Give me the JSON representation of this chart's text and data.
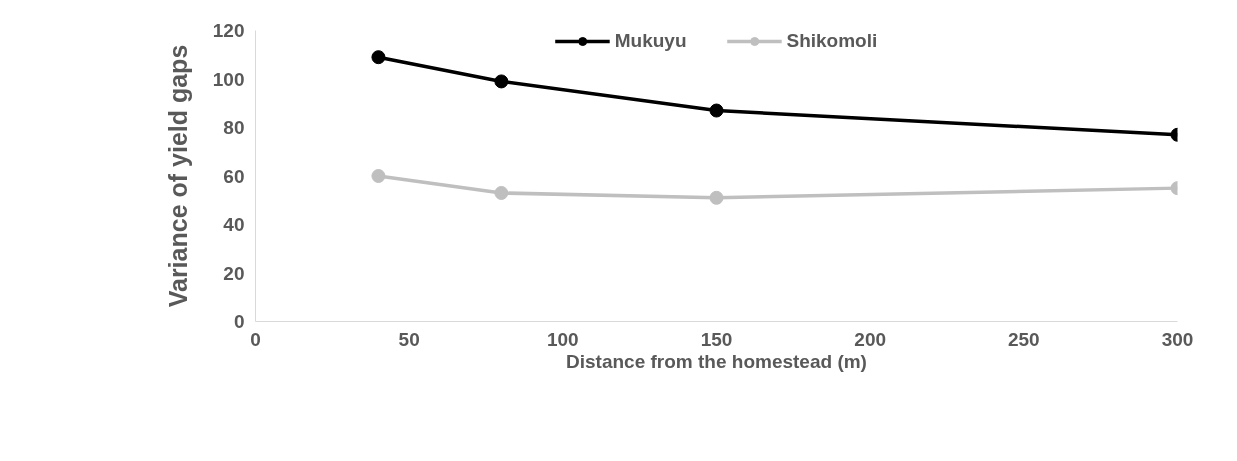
{
  "chart_data": {
    "type": "line",
    "xlabel": "Distance from the homestead (m)",
    "ylabel": "Variance of yield gaps",
    "x": [
      40,
      80,
      150,
      300
    ],
    "series": [
      {
        "name": "Mukuyu",
        "color": "#000000",
        "values": [
          109,
          99,
          87,
          77
        ]
      },
      {
        "name": "Shikomoli",
        "color": "#bfbfbf",
        "values": [
          60,
          53,
          51,
          55
        ]
      }
    ],
    "xlim": [
      0,
      300
    ],
    "xticks": [
      0,
      50,
      100,
      150,
      200,
      250,
      300
    ],
    "ylim": [
      0,
      120
    ],
    "yticks": [
      0,
      20,
      40,
      60,
      80,
      100,
      120
    ],
    "grid": false,
    "legend": "top",
    "marker": "circle",
    "line_style": "solid"
  }
}
